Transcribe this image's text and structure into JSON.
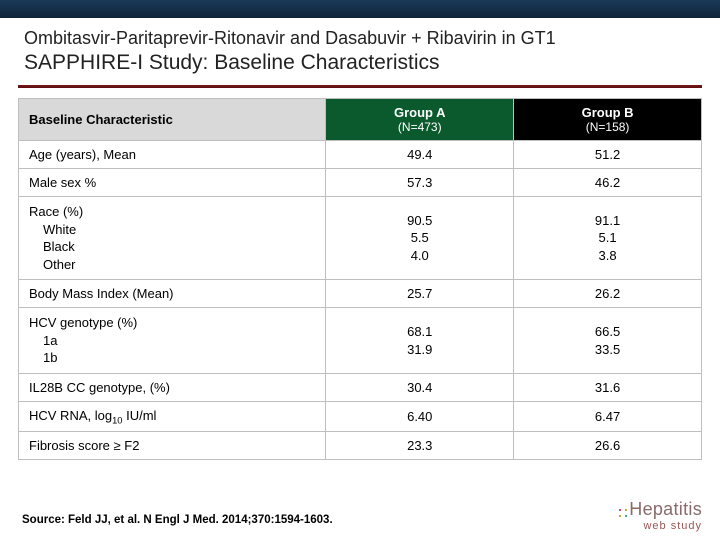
{
  "title": {
    "line1": "Ombitasvir-Paritaprevir-Ritonavir and Dasabuvir + Ribavirin in GT1",
    "line2": "SAPPHIRE-I Study: Baseline Characteristics"
  },
  "table": {
    "head_label": "Baseline Characteristic",
    "groupA": {
      "name": "Group A",
      "n": "(N=473)"
    },
    "groupB": {
      "name": "Group B",
      "n": "(N=158)"
    },
    "rows": [
      {
        "label": "Age (years), Mean",
        "a": "49.4",
        "b": "51.2"
      },
      {
        "label": "Male sex %",
        "a": "57.3",
        "b": "46.2"
      },
      {
        "label_html": "Race (%)<span class=\"indent\">White</span><span class=\"indent\">Black</span><span class=\"indent\">Other</span>",
        "a_html": "90.5<br>5.5<br>4.0",
        "b_html": "91.1<br>5.1<br>3.8",
        "multi": true
      },
      {
        "label": "Body Mass Index (Mean)",
        "a": "25.7",
        "b": "26.2"
      },
      {
        "label_html": "HCV genotype (%)<span class=\"indent\">1a</span><span class=\"indent\">1b</span>",
        "a_html": "68.1<br>31.9",
        "b_html": "66.5<br>33.5",
        "multi": true
      },
      {
        "label": "IL28B CC genotype, (%)",
        "a": "30.4",
        "b": "31.6"
      },
      {
        "label_html": "HCV RNA, log<sub>10</sub> IU/ml",
        "a": "6.40",
        "b": "6.47"
      },
      {
        "label": "Fibrosis score ≥ F2",
        "a": "23.3",
        "b": "26.6"
      }
    ]
  },
  "source": "Source: Feld JJ, et al. N Engl J Med. 2014;370:1594-1603.",
  "brand": {
    "name": "Hepatitis",
    "sub": "web study"
  },
  "colors": {
    "header_band": "#14324c",
    "divider": "#6a1414",
    "groupA_bg": "#0a5a2e",
    "groupB_bg": "#000000",
    "head_left_bg": "#d9d9d9",
    "border": "#bfbfbf"
  }
}
